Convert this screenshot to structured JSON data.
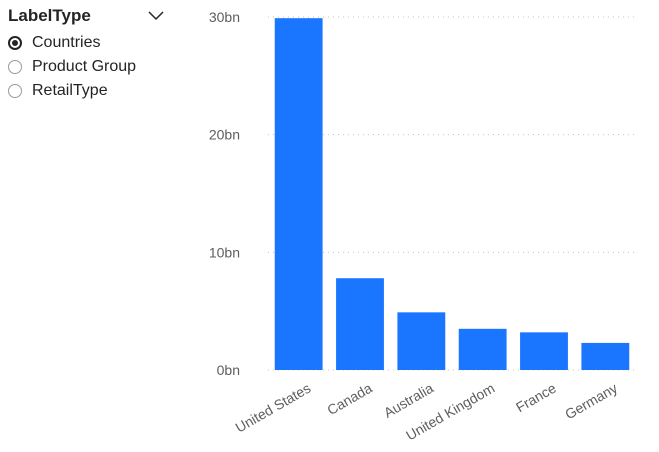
{
  "slicer": {
    "title": "LabelType",
    "items": [
      {
        "label": "Countries",
        "selected": true
      },
      {
        "label": "Product Group",
        "selected": false
      },
      {
        "label": "RetailType",
        "selected": false
      }
    ],
    "dropdown_icon": "chevron-down-icon"
  },
  "chart_data": {
    "type": "bar",
    "categories": [
      "United States",
      "Canada",
      "Australia",
      "United Kingdom",
      "France",
      "Germany"
    ],
    "values": [
      29.9,
      7.8,
      4.9,
      3.5,
      3.2,
      2.3
    ],
    "y_unit_suffix": "bn",
    "yticks": [
      "0bn",
      "10bn",
      "20bn",
      "30bn"
    ],
    "ylim": [
      0,
      30
    ],
    "grid": true,
    "bar_color": "#1A75FF",
    "title": "",
    "xlabel": "",
    "ylabel": ""
  }
}
